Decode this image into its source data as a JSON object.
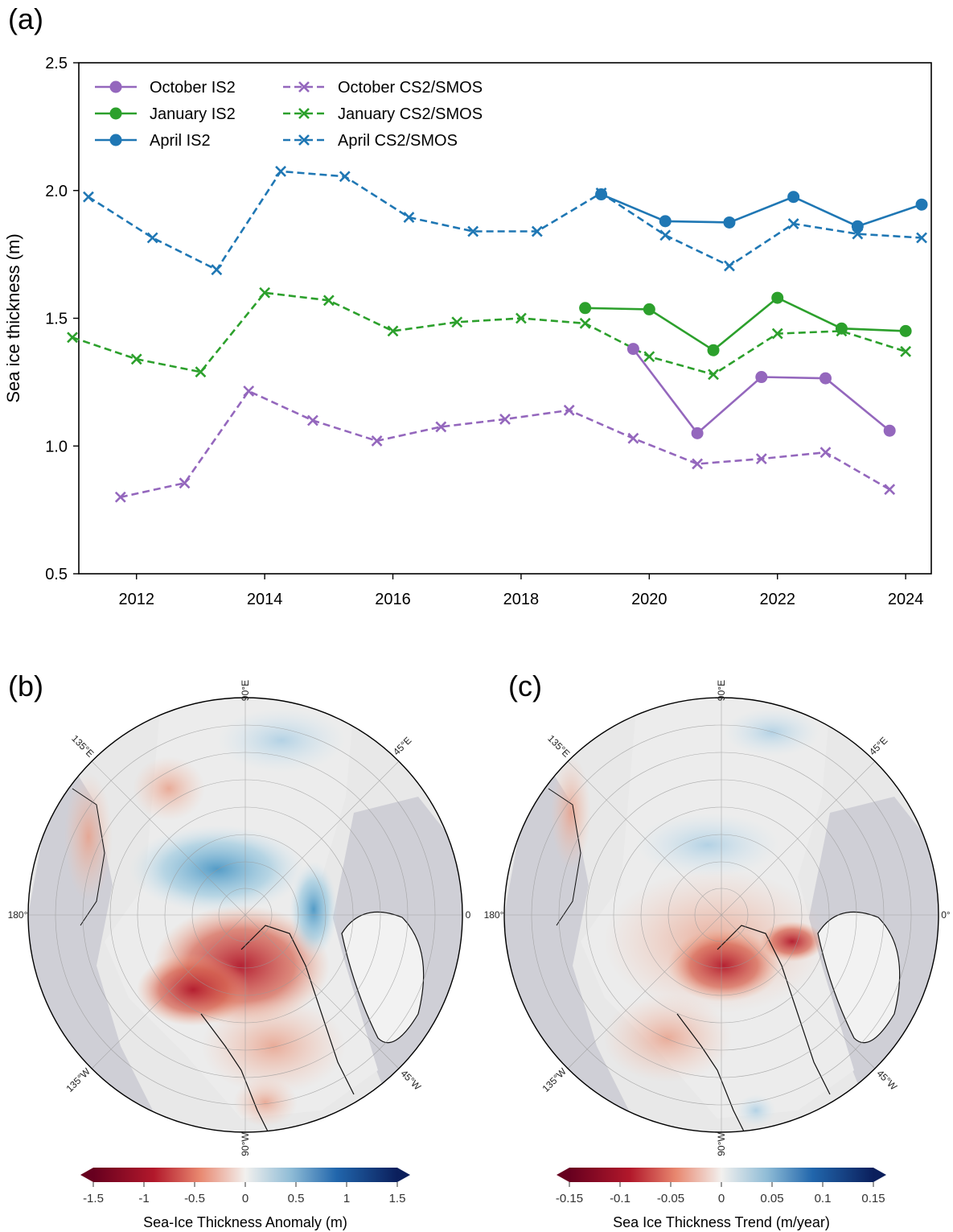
{
  "panel_a": {
    "label": "(a)",
    "chart_data": {
      "type": "line",
      "ylabel": "Sea ice thickness (m)",
      "xlabel": "",
      "xlim": [
        2011.1,
        2024.4
      ],
      "ylim": [
        0.5,
        2.5
      ],
      "xticks": [
        2012,
        2014,
        2016,
        2018,
        2020,
        2022,
        2024
      ],
      "xtick_labels": [
        "2012",
        "2014",
        "2016",
        "2018",
        "2020",
        "2022",
        "2024"
      ],
      "yticks": [
        0.5,
        1.0,
        1.5,
        2.0,
        2.5
      ],
      "ytick_labels": [
        "0.5",
        "1.0",
        "1.5",
        "2.0",
        "2.5"
      ],
      "legend_placement": "top-left",
      "series": [
        {
          "name": "October IS2",
          "color": "#9467bd",
          "style": "solid",
          "marker": "circle",
          "x": [
            2019.75,
            2020.75,
            2021.75,
            2022.75,
            2023.75
          ],
          "y": [
            1.38,
            1.05,
            1.27,
            1.265,
            1.06
          ]
        },
        {
          "name": "January IS2",
          "color": "#2ca02c",
          "style": "solid",
          "marker": "circle",
          "x": [
            2019.0,
            2020.0,
            2021.0,
            2022.0,
            2023.0,
            2024.0
          ],
          "y": [
            1.54,
            1.535,
            1.375,
            1.58,
            1.46,
            1.45
          ]
        },
        {
          "name": "April IS2",
          "color": "#1f77b4",
          "style": "solid",
          "marker": "circle",
          "x": [
            2019.25,
            2020.25,
            2021.25,
            2022.25,
            2023.25,
            2024.25
          ],
          "y": [
            1.985,
            1.88,
            1.875,
            1.975,
            1.86,
            1.945
          ]
        },
        {
          "name": "October CS2/SMOS",
          "color": "#9467bd",
          "style": "dashed",
          "marker": "x",
          "x": [
            2011.75,
            2012.75,
            2013.75,
            2014.75,
            2015.75,
            2016.75,
            2017.75,
            2018.75,
            2019.75,
            2020.75,
            2021.75,
            2022.75,
            2023.75
          ],
          "y": [
            0.8,
            0.855,
            1.215,
            1.1,
            1.02,
            1.075,
            1.105,
            1.14,
            1.03,
            0.93,
            0.95,
            0.975,
            0.83
          ]
        },
        {
          "name": "January CS2/SMOS",
          "color": "#2ca02c",
          "style": "dashed",
          "marker": "x",
          "x": [
            2011.0,
            2012.0,
            2013.0,
            2014.0,
            2015.0,
            2016.0,
            2017.0,
            2018.0,
            2019.0,
            2020.0,
            2021.0,
            2022.0,
            2023.0,
            2024.0
          ],
          "y": [
            1.425,
            1.34,
            1.29,
            1.6,
            1.57,
            1.45,
            1.485,
            1.5,
            1.48,
            1.35,
            1.28,
            1.44,
            1.45,
            1.37
          ]
        },
        {
          "name": "April CS2/SMOS",
          "color": "#1f77b4",
          "style": "dashed",
          "marker": "x",
          "x": [
            2011.25,
            2012.25,
            2013.25,
            2014.25,
            2015.25,
            2016.25,
            2017.25,
            2018.25,
            2019.25,
            2020.25,
            2021.25,
            2022.25,
            2023.25,
            2024.25
          ],
          "y": [
            1.975,
            1.815,
            1.69,
            2.075,
            2.055,
            1.895,
            1.84,
            1.84,
            1.99,
            1.825,
            1.705,
            1.87,
            1.83,
            1.815
          ]
        }
      ]
    }
  },
  "panel_b": {
    "label": "(b)",
    "lon_labels": {
      "top": "90°E",
      "tr": "45°E",
      "right": "0",
      "br": "45°W",
      "bottom": "90°W",
      "bl": "135°W",
      "left": "180°",
      "tl": "135°E"
    },
    "colorbar": {
      "label": "Sea-Ice Thickness Anomaly (m)",
      "ticks": [
        "-1.5",
        "-1",
        "-0.5",
        "0",
        "0.5",
        "1",
        "1.5"
      ],
      "range": [
        -1.5,
        1.5
      ]
    }
  },
  "panel_c": {
    "label": "(c)",
    "lon_labels": {
      "top": "90°E",
      "tr": "45°E",
      "right": "0°",
      "br": "45°W",
      "bottom": "90°W",
      "bl": "135°W",
      "left": "180°",
      "tl": "135°E"
    },
    "colorbar": {
      "label": "Sea Ice Thickness Trend (m/year)",
      "ticks": [
        "-0.15",
        "-0.1",
        "-0.05",
        "0",
        "0.05",
        "0.1",
        "0.15"
      ],
      "range": [
        -0.15,
        0.15
      ]
    }
  },
  "colors": {
    "ocean_land": "#cfcfd6",
    "ice_neutral": "#e8e8e8",
    "cmap_neg_dark": "#67001f",
    "cmap_neg": "#d6604d",
    "cmap_mid": "#f7f7f7",
    "cmap_pos": "#4393c3",
    "cmap_pos_dark": "#053061"
  }
}
